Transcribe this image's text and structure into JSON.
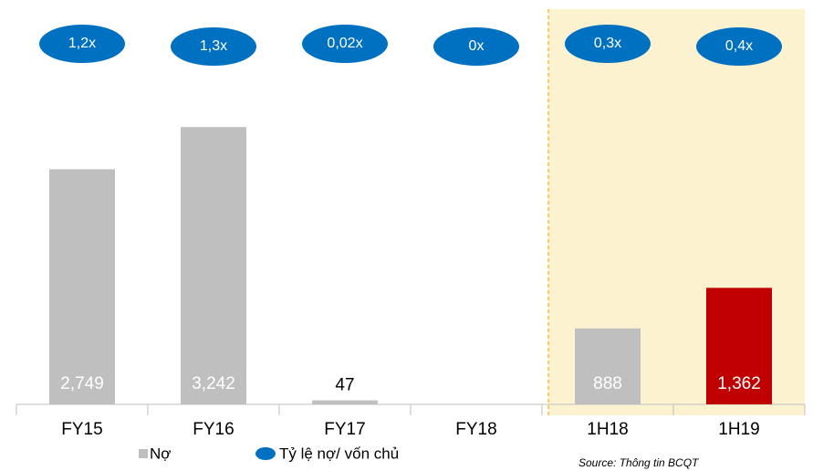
{
  "chart_data": {
    "type": "bar",
    "categories": [
      "FY15",
      "FY16",
      "FY17",
      "FY18",
      "1H18",
      "1H19"
    ],
    "series": [
      {
        "name": "Nợ",
        "color": "#bfbfbf",
        "colors": [
          "#bfbfbf",
          "#bfbfbf",
          "#bfbfbf",
          "#bfbfbf",
          "#bfbfbf",
          "#c00000"
        ],
        "values": [
          2749,
          3242,
          47,
          0,
          888,
          1362
        ],
        "value_labels": [
          "2,749",
          "3,242",
          "47",
          null,
          "888",
          "1,362"
        ]
      },
      {
        "name": "Tỷ lệ nợ/ vốn chủ",
        "color": "#0070c0",
        "values": [
          1.2,
          1.3,
          0.02,
          0,
          0.3,
          0.4
        ],
        "value_labels": [
          "1,2x",
          "1,3x",
          "0,02x",
          "0x",
          "0,3x",
          "0,4x"
        ]
      }
    ],
    "ylim": [
      0,
      3500
    ],
    "source": "Source: Thông tin BCQT"
  }
}
